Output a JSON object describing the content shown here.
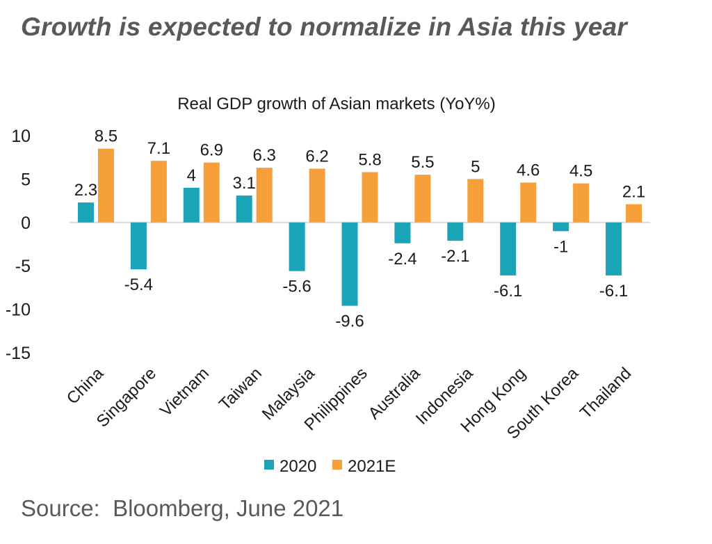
{
  "headline": "Growth is expected to normalize in Asia this year",
  "source": "Source:  Bloomberg, June 2021",
  "colors": {
    "s2020": "#1BA4B8",
    "s2021": "#F5A03A",
    "zero_line": "#d9d9d9",
    "text": "#1a1a1a",
    "muted": "#595959"
  },
  "chart_data": {
    "type": "bar",
    "title": "Real GDP growth of Asian markets (YoY%)",
    "categories": [
      "China",
      "Singapore",
      "Vietnam",
      "Taiwan",
      "Malaysia",
      "Philippines",
      "Australia",
      "Indonesia",
      "Hong Kong",
      "South Korea",
      "Thailand"
    ],
    "series": [
      {
        "name": "2020",
        "color": "#1BA4B8",
        "values": [
          2.3,
          -5.4,
          4,
          3.1,
          -5.6,
          -9.6,
          -2.4,
          -2.1,
          -6.1,
          -1,
          -6.1
        ]
      },
      {
        "name": "2021E",
        "color": "#F5A03A",
        "values": [
          8.5,
          7.1,
          6.9,
          6.3,
          6.2,
          5.8,
          5.5,
          5,
          4.6,
          4.5,
          2.1
        ]
      }
    ],
    "ylim": [
      -15,
      10
    ],
    "yticks": [
      10,
      5,
      0,
      -5,
      -10,
      -15
    ],
    "xlabel": "",
    "ylabel": "",
    "grid": false,
    "legend": "bottom",
    "data_labels": true
  }
}
